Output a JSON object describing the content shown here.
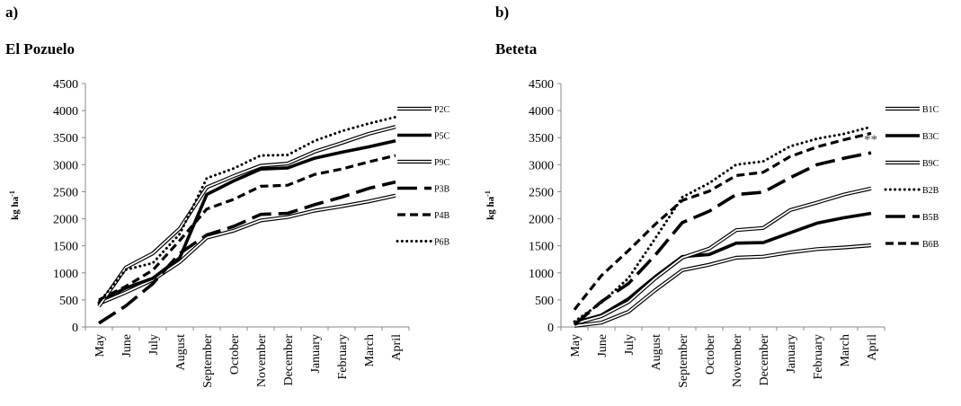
{
  "chart_data": [
    {
      "type": "line",
      "panel": "a)",
      "title": "El Pozuelo",
      "ylabel": "kg ha",
      "ylabel_sup": "-1",
      "ylim": [
        0,
        4500
      ],
      "yticks": [
        0,
        500,
        1000,
        1500,
        2000,
        2500,
        3000,
        3500,
        4000,
        4500
      ],
      "categories": [
        "May",
        "June",
        "July",
        "August",
        "September",
        "October",
        "November",
        "December",
        "January",
        "February",
        "March",
        "April"
      ],
      "legend_position": "right",
      "series": [
        {
          "name": "P2C",
          "style": "double",
          "values": [
            430,
            640,
            870,
            1200,
            1650,
            1780,
            1970,
            2030,
            2150,
            2230,
            2320,
            2430
          ]
        },
        {
          "name": "P5C",
          "style": "solid",
          "values": [
            470,
            720,
            900,
            1280,
            2450,
            2700,
            2920,
            2940,
            3120,
            3230,
            3330,
            3440
          ]
        },
        {
          "name": "P9C",
          "style": "double",
          "values": [
            380,
            1100,
            1360,
            1820,
            2580,
            2790,
            2980,
            3020,
            3240,
            3400,
            3570,
            3700
          ]
        },
        {
          "name": "P3B",
          "style": "longdash",
          "values": [
            70,
            390,
            800,
            1360,
            1700,
            1860,
            2080,
            2100,
            2260,
            2400,
            2560,
            2680
          ]
        },
        {
          "name": "P4B",
          "style": "dash",
          "values": [
            500,
            750,
            1050,
            1600,
            2180,
            2360,
            2600,
            2620,
            2820,
            2920,
            3050,
            3170
          ]
        },
        {
          "name": "P6B",
          "style": "dot",
          "values": [
            450,
            1060,
            1180,
            1720,
            2750,
            2930,
            3170,
            3180,
            3440,
            3620,
            3760,
            3880
          ]
        }
      ]
    },
    {
      "type": "line",
      "panel": "b)",
      "title": "Beteta",
      "ylabel": "kg ha",
      "ylabel_sup": "-1",
      "ylim": [
        0,
        4500
      ],
      "yticks": [
        0,
        500,
        1000,
        1500,
        2000,
        2500,
        3000,
        3500,
        4000,
        4500
      ],
      "categories": [
        "May",
        "June",
        "July",
        "August",
        "September",
        "October",
        "November",
        "December",
        "January",
        "February",
        "March",
        "April"
      ],
      "legend_position": "right",
      "annotation": "**",
      "series": [
        {
          "name": "B1C",
          "style": "double",
          "values": [
            20,
            80,
            280,
            680,
            1050,
            1150,
            1280,
            1300,
            1380,
            1440,
            1470,
            1510
          ]
        },
        {
          "name": "B3C",
          "style": "solid",
          "values": [
            80,
            220,
            520,
            930,
            1300,
            1340,
            1550,
            1560,
            1740,
            1920,
            2020,
            2100
          ]
        },
        {
          "name": "B9C",
          "style": "double",
          "values": [
            60,
            200,
            460,
            900,
            1280,
            1450,
            1790,
            1830,
            2160,
            2300,
            2450,
            2560
          ]
        },
        {
          "name": "B2B",
          "style": "dot",
          "values": [
            100,
            450,
            900,
            1640,
            2400,
            2660,
            3000,
            3060,
            3340,
            3480,
            3570,
            3700
          ]
        },
        {
          "name": "B5B",
          "style": "longdash",
          "values": [
            40,
            470,
            800,
            1330,
            1930,
            2140,
            2450,
            2490,
            2760,
            3000,
            3120,
            3220
          ]
        },
        {
          "name": "B6B",
          "style": "dash",
          "values": [
            320,
            950,
            1410,
            1900,
            2340,
            2510,
            2800,
            2860,
            3150,
            3330,
            3460,
            3580
          ]
        }
      ]
    }
  ]
}
